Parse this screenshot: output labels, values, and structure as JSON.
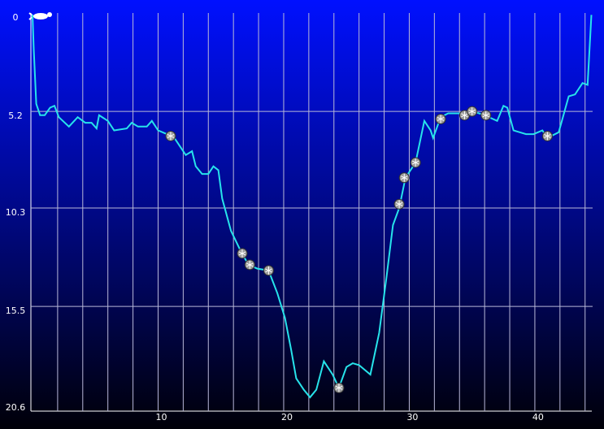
{
  "chart_data": {
    "type": "line",
    "inverted_y": true,
    "color": "#27e3ea",
    "grid": true,
    "x": [
      0,
      0.1,
      0.3,
      0.6,
      0.97,
      1.4,
      1.75,
      2.1,
      2.9,
      3.6,
      4.2,
      4.7,
      5.1,
      5.3,
      6.0,
      6.5,
      7.5,
      7.9,
      8.4,
      9.1,
      9.5,
      10.0,
      10.7,
      11.2,
      11.7,
      12.2,
      12.7,
      13.0,
      13.5,
      14.0,
      14.4,
      14.8,
      15.1,
      15.8,
      16.6,
      17.2,
      17.9,
      18.8,
      19.5,
      20.1,
      20.6,
      21.0,
      21.6,
      22.1,
      22.6,
      23.2,
      23.9,
      24.4,
      25.0,
      25.5,
      26.0,
      26.9,
      27.6,
      28.2,
      28.7,
      29.2,
      29.7,
      30.5,
      31.2,
      31.7,
      31.9,
      32.5,
      33.1,
      34.4,
      35.1,
      36.0,
      37.0,
      37.5,
      37.8,
      38.3,
      39.3,
      39.9,
      40.6,
      41.0,
      41.9,
      42.7,
      43.2,
      43.8,
      44.2,
      44.5
    ],
    "values": [
      0.1,
      1.9,
      4.8,
      5.4,
      5.4,
      5.0,
      4.9,
      5.5,
      6.0,
      5.5,
      5.8,
      5.8,
      6.1,
      5.4,
      5.7,
      6.2,
      6.1,
      5.8,
      6.0,
      6.0,
      5.7,
      6.2,
      6.4,
      6.5,
      7.0,
      7.5,
      7.3,
      8.1,
      8.5,
      8.5,
      8.1,
      8.3,
      9.8,
      11.5,
      12.6,
      13.3,
      13.5,
      13.6,
      14.8,
      16.1,
      17.8,
      19.3,
      19.9,
      20.3,
      19.9,
      18.4,
      19.1,
      19.8,
      18.7,
      18.5,
      18.6,
      19.1,
      16.9,
      13.9,
      11.2,
      10.3,
      8.7,
      7.9,
      5.7,
      6.2,
      6.6,
      5.5,
      5.3,
      5.3,
      5.2,
      5.4,
      5.7,
      4.9,
      5.0,
      6.2,
      6.4,
      6.4,
      6.2,
      6.6,
      6.3,
      4.4,
      4.3,
      3.7,
      3.8,
      0.1
    ],
    "events": {
      "x": [
        11.0,
        16.7,
        17.3,
        18.8,
        24.4,
        29.2,
        29.6,
        30.5,
        32.5,
        34.4,
        35.0,
        36.1,
        41.0
      ],
      "y": [
        6.5,
        12.7,
        13.3,
        13.6,
        19.8,
        10.1,
        8.7,
        7.9,
        5.6,
        5.4,
        5.2,
        5.4,
        6.5
      ]
    },
    "xlim": [
      0,
      44.6
    ],
    "xticks": [
      10,
      20,
      30,
      40
    ],
    "x_minor_ticks": [
      2,
      4,
      6,
      8,
      10,
      12,
      14,
      16,
      18,
      20,
      22,
      24,
      26,
      28,
      30,
      32,
      34,
      36,
      38,
      40,
      42,
      44
    ],
    "ylim": [
      0,
      20.6
    ],
    "yticks": [
      0,
      5.2,
      10.3,
      15.5,
      20.6
    ]
  }
}
